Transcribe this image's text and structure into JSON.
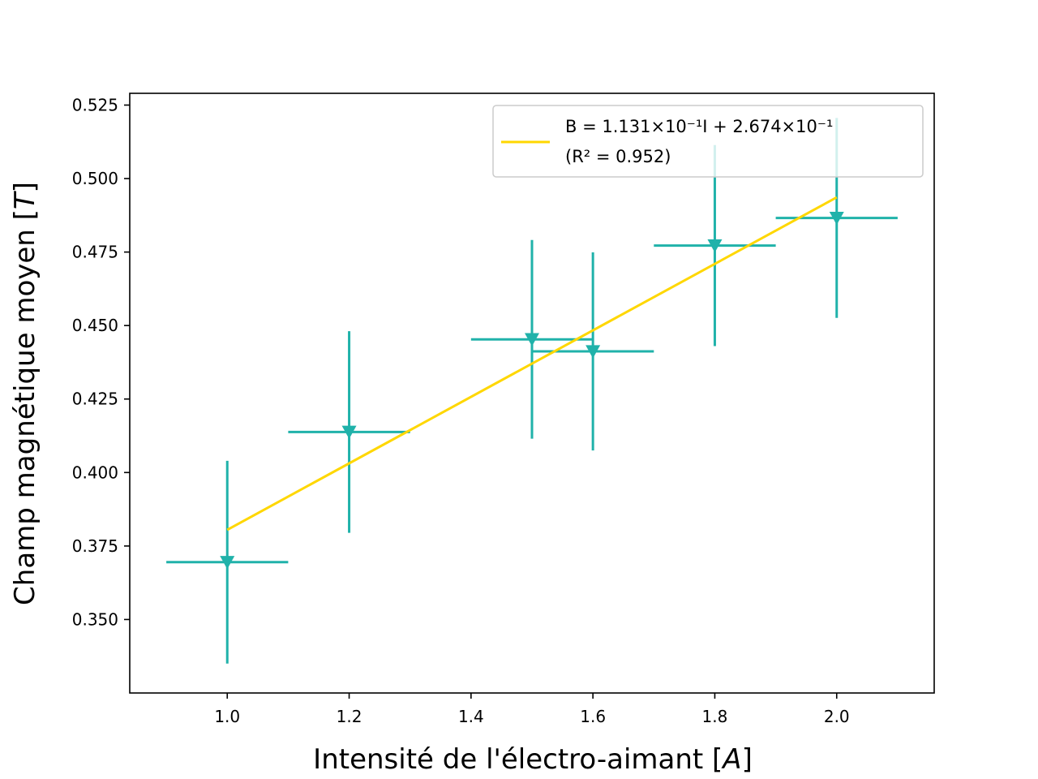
{
  "colors": {
    "data": "#20b2aa",
    "fit": "#ffd700",
    "axes": "#000000",
    "legend_border": "#cccccc"
  },
  "chart_data": {
    "type": "scatter",
    "title": "",
    "xlabel": "Intensité de l'électro-aimant [A]",
    "xlabel_main": "Intensité de l'électro-aimant [",
    "xlabel_unit": "A",
    "xlabel_close": "]",
    "ylabel": "Champ magnétique moyen [T]",
    "ylabel_main": "Champ magnétique moyen [",
    "ylabel_unit": "T",
    "ylabel_close": "]",
    "xlim": [
      0.84,
      2.16
    ],
    "ylim": [
      0.325,
      0.529
    ],
    "xticks": [
      1.0,
      1.2,
      1.4,
      1.6,
      1.8,
      2.0
    ],
    "xtick_labels": [
      "1.0",
      "1.2",
      "1.4",
      "1.6",
      "1.8",
      "2.0"
    ],
    "yticks": [
      0.35,
      0.375,
      0.4,
      0.425,
      0.45,
      0.475,
      0.5,
      0.525
    ],
    "ytick_labels": [
      "0.350",
      "0.375",
      "0.400",
      "0.425",
      "0.450",
      "0.475",
      "0.500",
      "0.525"
    ],
    "grid": false,
    "legend_position": "top-right",
    "series": [
      {
        "type": "errorbar",
        "marker": "triangle-down",
        "x": [
          1.0,
          1.2,
          1.5,
          1.6,
          1.8,
          2.0
        ],
        "y": [
          0.3695,
          0.4138,
          0.4453,
          0.4412,
          0.4772,
          0.4866
        ],
        "xerr": [
          0.1,
          0.1,
          0.1,
          0.1,
          0.1,
          0.1
        ],
        "yerr": [
          0.0345,
          0.0343,
          0.0338,
          0.0337,
          0.0342,
          0.034
        ]
      },
      {
        "type": "line",
        "x": [
          1.0,
          2.0
        ],
        "y": [
          0.3805,
          0.4936
        ]
      }
    ],
    "legend": {
      "equation": "B = 1.131×10⁻¹I + 2.674×10⁻¹",
      "r2": "(R² = 0.952)"
    }
  }
}
